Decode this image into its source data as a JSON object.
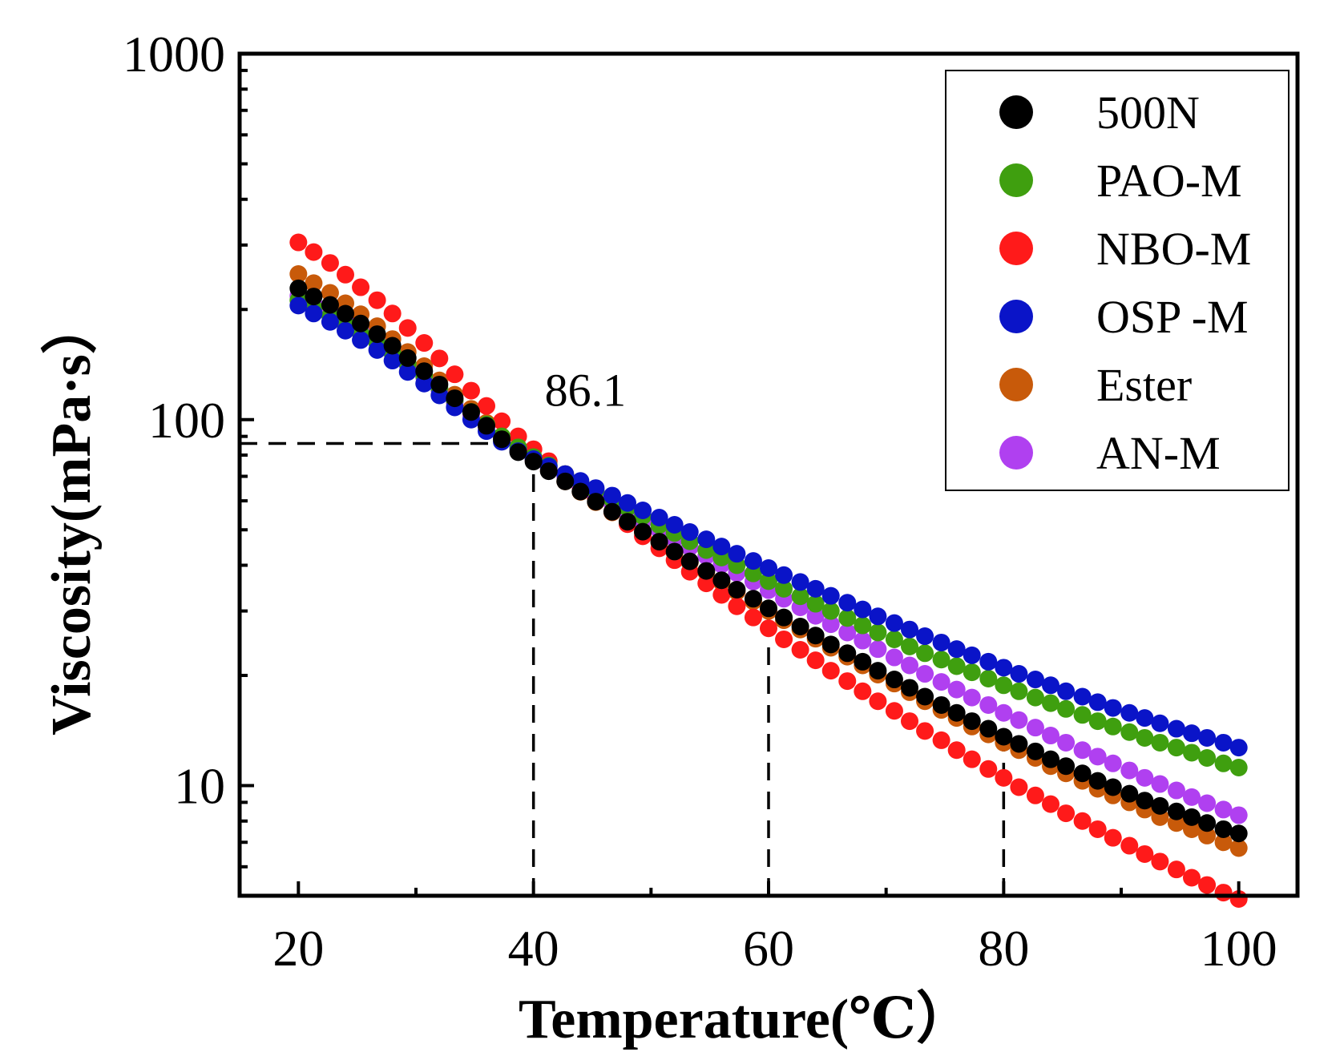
{
  "chart_data": {
    "type": "scatter",
    "xlabel": "Temperature(℃）",
    "ylabel": "Viscosity(mPa·s）",
    "xlim": [
      15,
      105
    ],
    "ylim": [
      5,
      1000
    ],
    "yscale": "log",
    "xticks": [
      "20",
      "40",
      "60",
      "80",
      "100"
    ],
    "yticks": [
      "10",
      "100",
      "1000"
    ],
    "grid": false,
    "legend_position": "top-right",
    "x": [
      20,
      21.3,
      22.7,
      24,
      25.3,
      26.7,
      28,
      29.3,
      30.7,
      32,
      33.3,
      34.7,
      36,
      37.3,
      38.7,
      40,
      41.3,
      42.7,
      44,
      45.3,
      46.7,
      48,
      49.3,
      50.7,
      52,
      53.3,
      54.7,
      56,
      57.3,
      58.7,
      60,
      61.3,
      62.7,
      64,
      65.3,
      66.7,
      68,
      69.3,
      70.7,
      72,
      73.3,
      74.7,
      76,
      77.3,
      78.7,
      80,
      81.3,
      82.7,
      84,
      85.3,
      86.7,
      88,
      89.3,
      90.7,
      92,
      93.3,
      94.7,
      96,
      97.3,
      98.7,
      100
    ],
    "series": [
      {
        "name": "500N",
        "color": "#000000",
        "values": [
          228.4,
          217,
          205.9,
          194.8,
          183.1,
          171.2,
          159.2,
          147.3,
          135.7,
          124.7,
          114.4,
          104.9,
          96.2,
          88.4,
          81.5,
          76.8,
          72.3,
          67.8,
          63.6,
          59.7,
          56,
          52.6,
          49.4,
          46.4,
          43.6,
          41,
          38.6,
          36.4,
          34.3,
          32.4,
          30.5,
          28.8,
          27.2,
          25.7,
          24.3,
          23,
          21.8,
          20.6,
          19.5,
          18.5,
          17.5,
          16.6,
          15.8,
          15,
          14.3,
          13.6,
          13,
          12.4,
          11.8,
          11.3,
          10.8,
          10.3,
          9.9,
          9.5,
          9.1,
          8.8,
          8.5,
          8.2,
          7.9,
          7.6,
          7.4
        ]
      },
      {
        "name": "PAO-M",
        "color": "#3f9f0f",
        "values": [
          212,
          202,
          192,
          182,
          172,
          162,
          152,
          142,
          132,
          122,
          113,
          105,
          97,
          90,
          84,
          79,
          75,
          71,
          67.5,
          64,
          60.5,
          57.5,
          54.5,
          51.5,
          49,
          46.5,
          44,
          42,
          40,
          38,
          36.2,
          34.5,
          32.9,
          31.4,
          30,
          28.7,
          27.4,
          26.2,
          25.1,
          24,
          23,
          22.1,
          21.2,
          20.4,
          19.6,
          18.8,
          18.1,
          17.4,
          16.8,
          16.2,
          15.6,
          15,
          14.5,
          14,
          13.5,
          13.1,
          12.7,
          12.3,
          11.9,
          11.5,
          11.2
        ]
      },
      {
        "name": "NBO-M",
        "color": "#ff1a1a",
        "values": [
          305,
          287,
          268,
          249,
          230,
          212,
          195,
          178,
          162,
          147,
          133,
          120,
          109,
          99,
          90,
          83,
          77,
          71,
          65.5,
          60.5,
          56,
          51.8,
          48,
          44.5,
          41.3,
          38.4,
          35.7,
          33.2,
          30.9,
          28.8,
          26.9,
          25.1,
          23.5,
          22,
          20.6,
          19.3,
          18.1,
          17,
          16,
          15,
          14.1,
          13.3,
          12.5,
          11.8,
          11.1,
          10.5,
          9.9,
          9.4,
          8.9,
          8.4,
          8,
          7.6,
          7.2,
          6.85,
          6.5,
          6.2,
          5.9,
          5.6,
          5.35,
          5.1,
          4.9
        ]
      },
      {
        "name": "OSP -M",
        "color": "#0a14c8",
        "values": [
          205,
          195,
          185,
          175,
          165,
          155,
          145,
          135,
          125.5,
          116.5,
          108,
          100,
          93,
          87,
          82,
          78,
          74.5,
          71,
          68,
          65,
          62,
          59.2,
          56.5,
          54,
          51.6,
          49.3,
          47.1,
          45,
          43,
          41.1,
          39.3,
          37.6,
          36,
          34.5,
          33,
          31.6,
          30.3,
          29,
          27.8,
          26.7,
          25.6,
          24.6,
          23.6,
          22.7,
          21.8,
          21,
          20.2,
          19.5,
          18.8,
          18.1,
          17.5,
          16.9,
          16.3,
          15.8,
          15.3,
          14.8,
          14.3,
          13.9,
          13.5,
          13.1,
          12.7
        ]
      },
      {
        "name": "Ester",
        "color": "#c85a0a",
        "values": [
          250,
          236,
          222,
          208,
          194,
          180,
          166,
          153,
          140,
          128,
          117,
          107,
          98,
          90,
          83,
          77.5,
          72.5,
          67.8,
          63.5,
          59.5,
          55.8,
          52.3,
          49.1,
          46.1,
          43.3,
          40.7,
          38.3,
          36,
          33.9,
          31.9,
          30,
          28.3,
          26.7,
          25.2,
          23.8,
          22.5,
          21.3,
          20.1,
          19,
          18,
          17,
          16.1,
          15.3,
          14.5,
          13.8,
          13.1,
          12.5,
          11.9,
          11.3,
          10.8,
          10.3,
          9.8,
          9.4,
          9,
          8.6,
          8.2,
          7.9,
          7.6,
          7.3,
          7,
          6.75
        ]
      },
      {
        "name": "AN-M",
        "color": "#b040f0",
        "values": [
          218,
          207,
          196,
          185,
          174,
          163,
          152,
          141,
          130.5,
          120.5,
          111.5,
          103,
          95.5,
          89,
          83,
          78,
          73.8,
          69.8,
          66,
          62.4,
          59,
          55.8,
          52.8,
          50,
          47.3,
          44.8,
          42.4,
          40.2,
          38.1,
          36.1,
          34.2,
          32.4,
          30.7,
          29.1,
          27.6,
          26.2,
          24.9,
          23.6,
          22.4,
          21.3,
          20.2,
          19.2,
          18.3,
          17.4,
          16.6,
          15.8,
          15.1,
          14.4,
          13.7,
          13.1,
          12.5,
          12,
          11.5,
          11,
          10.5,
          10.1,
          9.7,
          9.3,
          8.95,
          8.6,
          8.3
        ]
      }
    ],
    "annotations": [
      {
        "text": "86.1",
        "x": 40,
        "y": 86.1
      }
    ],
    "reference_lines": [
      {
        "type": "horizontal",
        "y": 86.1,
        "x_from": 15,
        "x_to": 40
      },
      {
        "type": "vertical",
        "x": 40,
        "y_from": 5,
        "y_to": 86.1
      },
      {
        "type": "vertical",
        "x": 60,
        "y_from": 5,
        "y_to": 30.5
      },
      {
        "type": "vertical",
        "x": 80,
        "y_from": 5,
        "y_to": 13.6
      }
    ]
  }
}
